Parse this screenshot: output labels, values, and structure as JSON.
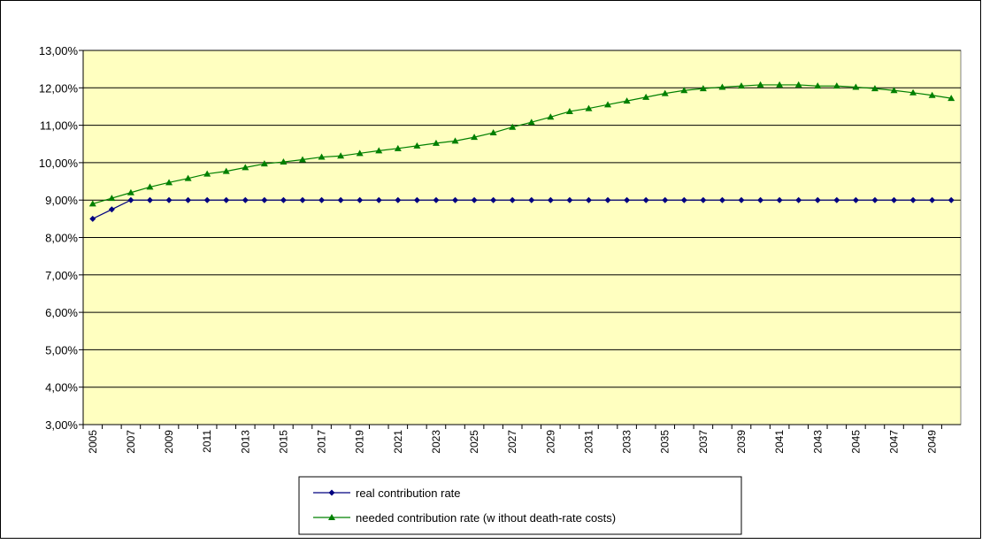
{
  "chart_data": {
    "type": "line",
    "categories": [
      "2005",
      null,
      "2007",
      null,
      "2009",
      null,
      "2011",
      null,
      "2013",
      null,
      "2015",
      null,
      "2017",
      null,
      "2019",
      null,
      "2021",
      null,
      "2023",
      null,
      "2025",
      null,
      "2027",
      null,
      "2029",
      null,
      "2031",
      null,
      "2033",
      null,
      "2035",
      null,
      "2037",
      null,
      "2039",
      null,
      "2041",
      null,
      "2043",
      null,
      "2045",
      null,
      "2047",
      null,
      "2049",
      null
    ],
    "series": [
      {
        "name": "real contribution rate",
        "color": "#000080",
        "marker": "diamond",
        "values": [
          8.5,
          8.75,
          9.0,
          9.0,
          9.0,
          9.0,
          9.0,
          9.0,
          9.0,
          9.0,
          9.0,
          9.0,
          9.0,
          9.0,
          9.0,
          9.0,
          9.0,
          9.0,
          9.0,
          9.0,
          9.0,
          9.0,
          9.0,
          9.0,
          9.0,
          9.0,
          9.0,
          9.0,
          9.0,
          9.0,
          9.0,
          9.0,
          9.0,
          9.0,
          9.0,
          9.0,
          9.0,
          9.0,
          9.0,
          9.0,
          9.0,
          9.0,
          9.0,
          9.0,
          9.0,
          9.0
        ]
      },
      {
        "name": "needed contribution rate (w ithout death-rate costs)",
        "color": "#008000",
        "marker": "triangle",
        "values": [
          8.9,
          9.05,
          9.2,
          9.35,
          9.47,
          9.58,
          9.7,
          9.77,
          9.87,
          9.97,
          10.02,
          10.08,
          10.15,
          10.18,
          10.25,
          10.32,
          10.38,
          10.45,
          10.52,
          10.58,
          10.68,
          10.8,
          10.95,
          11.08,
          11.22,
          11.37,
          11.45,
          11.55,
          11.65,
          11.75,
          11.85,
          11.93,
          11.98,
          12.02,
          12.05,
          12.08,
          12.08,
          12.08,
          12.05,
          12.05,
          12.02,
          11.98,
          11.93,
          11.87,
          11.8,
          11.72
        ]
      }
    ],
    "ylim": [
      3,
      13
    ],
    "yticks": [
      {
        "value": 3,
        "label": "3,00%"
      },
      {
        "value": 4,
        "label": "4,00%"
      },
      {
        "value": 5,
        "label": "5,00%"
      },
      {
        "value": 6,
        "label": "6,00%"
      },
      {
        "value": 7,
        "label": "7,00%"
      },
      {
        "value": 8,
        "label": "8,00%"
      },
      {
        "value": 9,
        "label": "9,00%"
      },
      {
        "value": 10,
        "label": "10,00%"
      },
      {
        "value": 11,
        "label": "11,00%"
      },
      {
        "value": 12,
        "label": "12,00%"
      },
      {
        "value": 13,
        "label": "13,00%"
      }
    ],
    "grid": true,
    "legend": "bottom",
    "plot_background": "#ffffc0"
  }
}
